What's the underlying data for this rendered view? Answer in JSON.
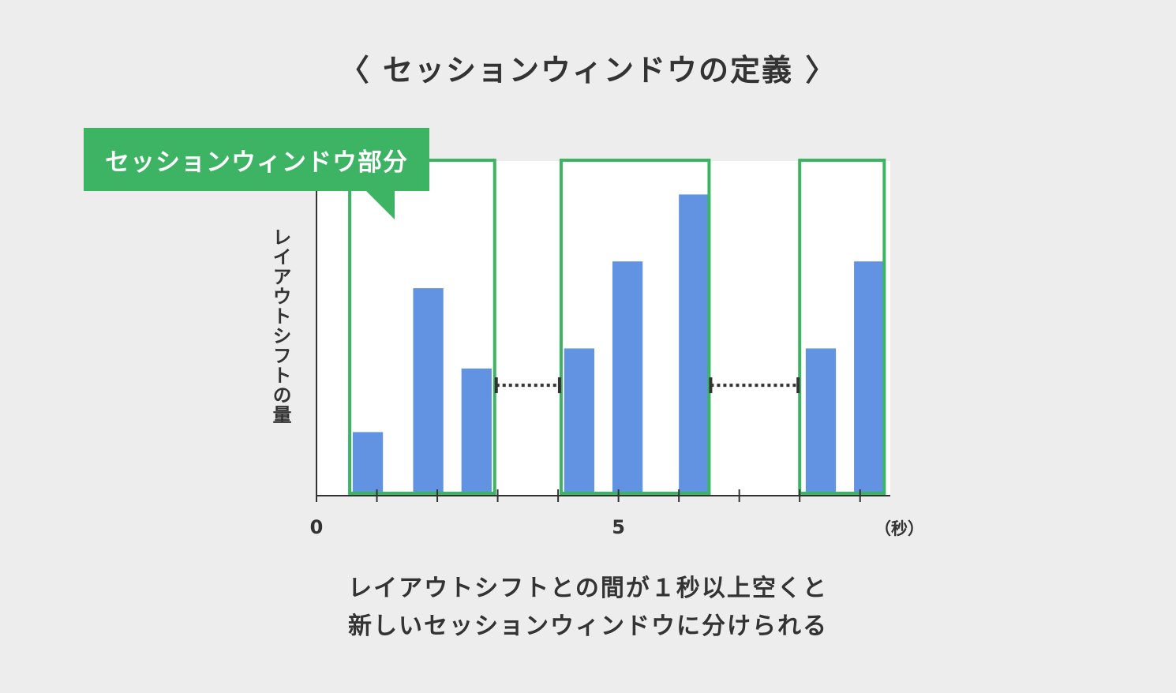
{
  "page": {
    "title": "〈 セッションウィンドウの定義 〉",
    "callout_label": "セッションウィンドウ部分",
    "caption_line1": "レイアウトシフトとの間が１秒以上空くと",
    "caption_line2": "新しいセッションウィンドウに分けられる"
  },
  "chart_data": {
    "type": "bar",
    "ylabel": "レイアウトシフトの量",
    "xunit": "（秒）",
    "x_tick_labels": [
      {
        "x": 0,
        "label": "0"
      },
      {
        "x": 5,
        "label": "5"
      }
    ],
    "xlim": [
      0,
      9.5
    ],
    "ylim": [
      0,
      100
    ],
    "minor_ticks": [
      1,
      2,
      3,
      4,
      5,
      6,
      7,
      8,
      9
    ],
    "bars": [
      {
        "x_start": 0.6,
        "x_end": 1.1,
        "value": 19
      },
      {
        "x_start": 1.6,
        "x_end": 2.1,
        "value": 62
      },
      {
        "x_start": 2.4,
        "x_end": 2.9,
        "value": 38
      },
      {
        "x_start": 4.1,
        "x_end": 4.6,
        "value": 44
      },
      {
        "x_start": 4.9,
        "x_end": 5.4,
        "value": 70
      },
      {
        "x_start": 6.0,
        "x_end": 6.5,
        "value": 90
      },
      {
        "x_start": 8.1,
        "x_end": 8.6,
        "value": 44
      },
      {
        "x_start": 8.9,
        "x_end": 9.4,
        "value": 70
      }
    ],
    "session_windows": [
      {
        "x_start": 0.55,
        "x_end": 2.95
      },
      {
        "x_start": 4.05,
        "x_end": 6.5
      },
      {
        "x_start": 8.0,
        "x_end": 9.4
      }
    ],
    "gaps": [
      {
        "x_start": 2.95,
        "x_end": 4.05
      },
      {
        "x_start": 6.5,
        "x_end": 8.0
      }
    ],
    "gap_level": 33,
    "colors": {
      "bar": "#6292e2",
      "window_border": "#3cb463",
      "callout": "#3cb463",
      "axis": "#333333",
      "plot_bg": "#ffffff"
    }
  }
}
